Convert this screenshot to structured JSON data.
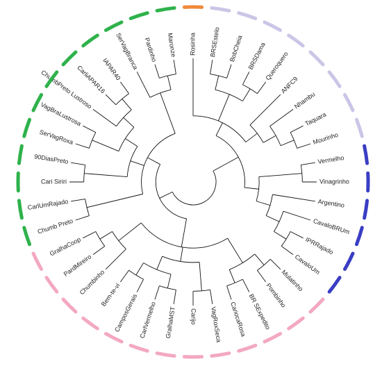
{
  "leaves": [
    {
      "label": "Rosinha",
      "color": "#f08a3a"
    },
    {
      "label": "BRSEstelo",
      "color": "#cac6e6"
    },
    {
      "label": "BobCheia",
      "color": "#cac6e6"
    },
    {
      "label": "BRSDama",
      "color": "#cac6e6"
    },
    {
      "label": "Queroquero",
      "color": "#cac6e6"
    },
    {
      "label": "ANFC9",
      "color": "#cac6e6"
    },
    {
      "label": "Nhambu",
      "color": "#cac6e6"
    },
    {
      "label": "Taquara",
      "color": "#cac6e6"
    },
    {
      "label": "Mourinho",
      "color": "#cac6e6"
    },
    {
      "label": "Vermelho",
      "color": "#3a3ec4"
    },
    {
      "label": "Vinagrinho",
      "color": "#3a3ec4"
    },
    {
      "label": "Argentino",
      "color": "#3a3ec4"
    },
    {
      "label": "CavaloBRUm",
      "color": "#3a3ec4"
    },
    {
      "label": "IPRRajado",
      "color": "#3a3ec4"
    },
    {
      "label": "CavaloUm",
      "color": "#3a3ec4"
    },
    {
      "label": "Mulatinho",
      "color": "#f3a8c2"
    },
    {
      "label": "Pombinho",
      "color": "#f3a8c2"
    },
    {
      "label": "BR SExpedito",
      "color": "#f3a8c2"
    },
    {
      "label": "CariocaRosa",
      "color": "#f3a8c2"
    },
    {
      "label": "VagRoxSeca",
      "color": "#f3a8c2"
    },
    {
      "label": "Carijo",
      "color": "#f3a8c2"
    },
    {
      "label": "GralhaMST",
      "color": "#f3a8c2"
    },
    {
      "label": "CarlVermelho",
      "color": "#f3a8c2"
    },
    {
      "label": "CamposGerais",
      "color": "#f3a8c2"
    },
    {
      "label": "Bem-te-vi",
      "color": "#f3a8c2"
    },
    {
      "label": "Chumbinho",
      "color": "#f3a8c2"
    },
    {
      "label": "PardMireiro",
      "color": "#f3a8c2"
    },
    {
      "label": "GralhaCoop",
      "color": "#f3a8c2"
    },
    {
      "label": "Chumb Preto",
      "color": "#2fb24c"
    },
    {
      "label": "CarlUmRajado",
      "color": "#2fb24c"
    },
    {
      "label": "Cari Siriri",
      "color": "#2fb24c"
    },
    {
      "label": "90DiasPreto",
      "color": "#2fb24c"
    },
    {
      "label": "SerVagRoxa",
      "color": "#2fb24c"
    },
    {
      "label": "VagBraLustrosa",
      "color": "#2fb24c"
    },
    {
      "label": "ChumbPreto Lustroso",
      "color": "#2fb24c"
    },
    {
      "label": "CarliAPAR16",
      "color": "#2fb24c"
    },
    {
      "label": "IAPAR40",
      "color": "#2fb24c"
    },
    {
      "label": "SerVagBranca",
      "color": "#2fb24c"
    },
    {
      "label": "Pardinho",
      "color": "#2fb24c"
    },
    {
      "label": "Maronze",
      "color": "#2fb24c"
    }
  ]
}
